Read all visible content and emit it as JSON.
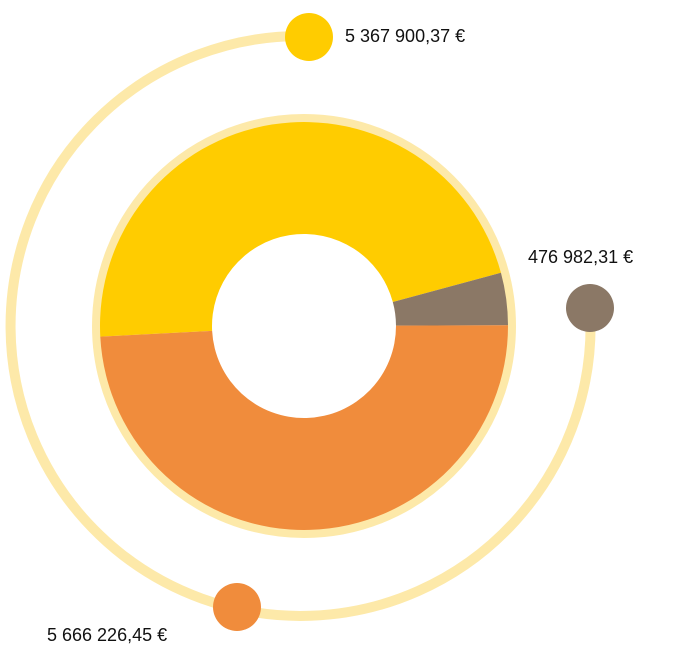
{
  "chart_data": {
    "type": "pie",
    "values": [
      5367900.37,
      476982.31,
      5666226.45
    ],
    "value_labels": [
      "5 367 900,37 €",
      "476 982,31 €",
      "5 666 226,45 €"
    ],
    "colors": [
      "#ffcc00",
      "#8b7866",
      "#f08c3c"
    ]
  }
}
